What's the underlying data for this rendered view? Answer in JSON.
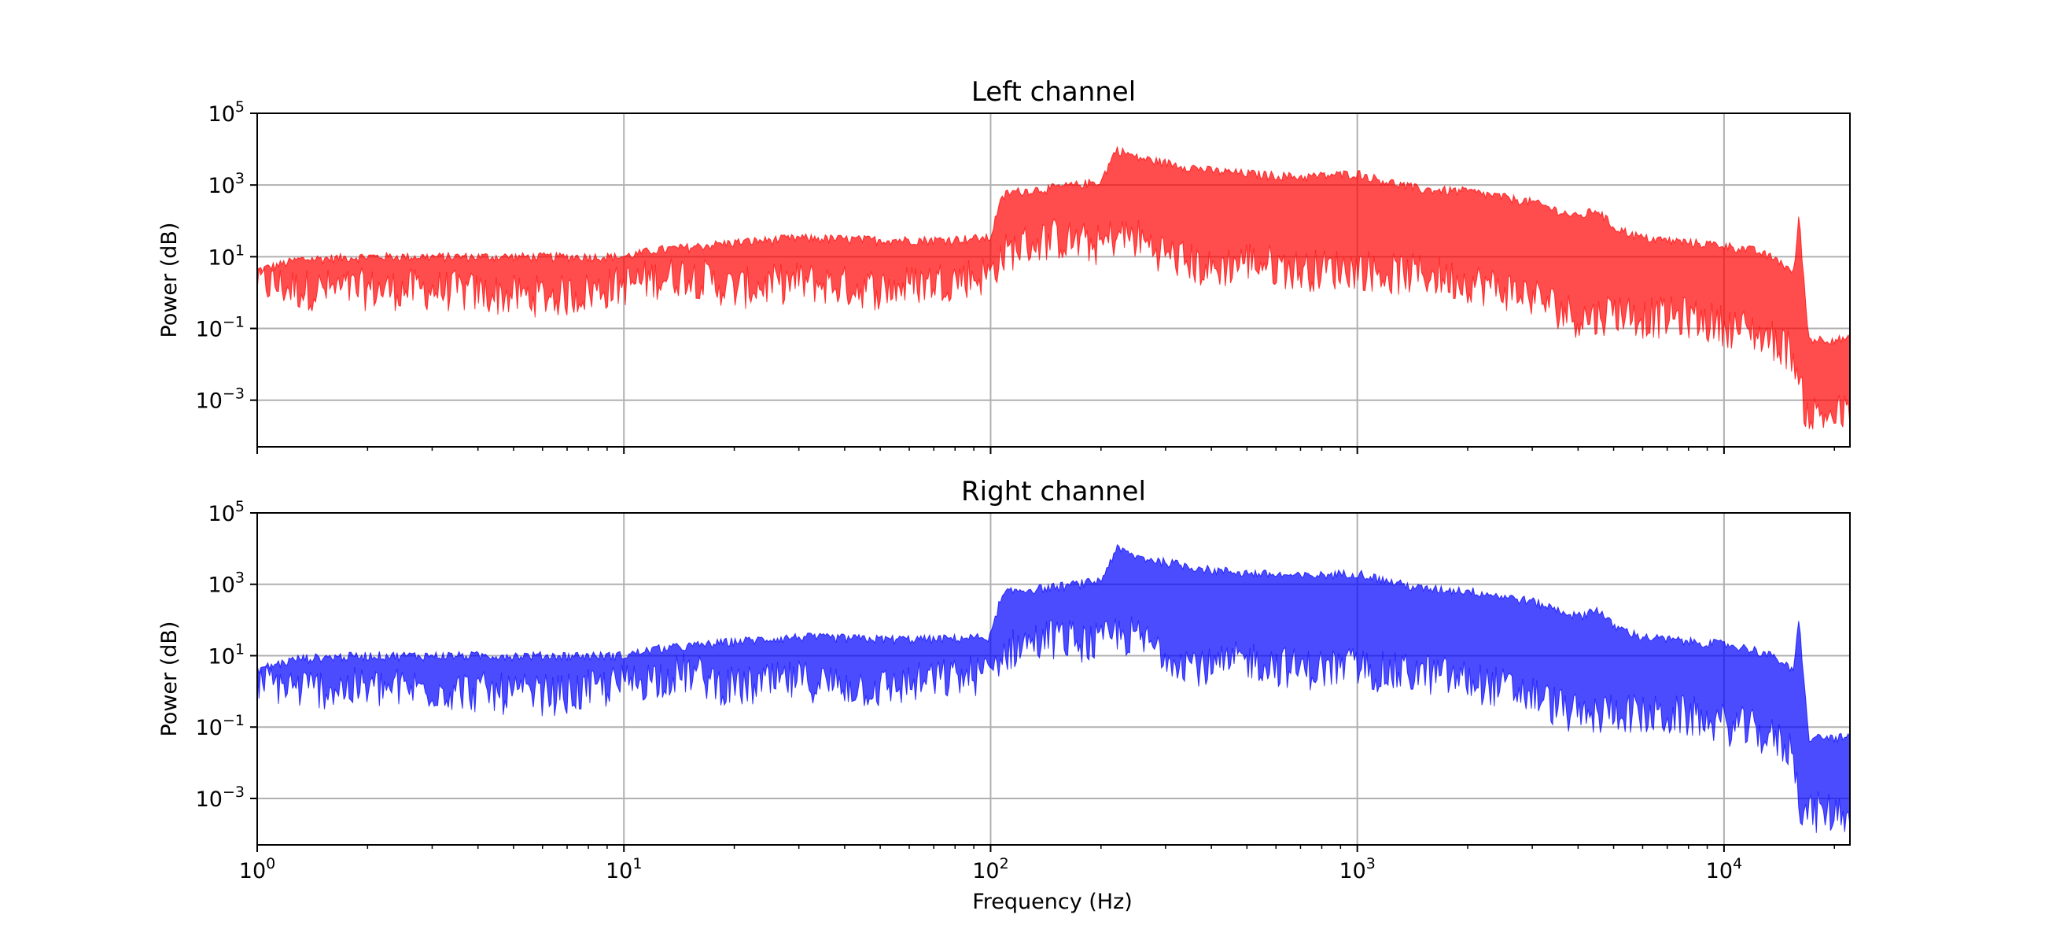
{
  "figure": {
    "xlabel": "Frequency (Hz)"
  },
  "chart_data": [
    {
      "type": "area",
      "title": "Left channel",
      "xlabel": "",
      "ylabel": "Power (dB)",
      "xscale": "log",
      "yscale": "log",
      "xlim": [
        1,
        22050
      ],
      "ylim": [
        5e-05,
        100000
      ],
      "x_ticks": [
        1,
        10,
        100,
        1000,
        10000
      ],
      "x_tick_labels": [],
      "y_ticks": [
        0.001,
        0.1,
        10,
        1000,
        100000
      ],
      "y_tick_labels": [
        {
          "base": "10",
          "exp": "−3"
        },
        {
          "base": "10",
          "exp": "−1"
        },
        {
          "base": "10",
          "exp": "1"
        },
        {
          "base": "10",
          "exp": "3"
        },
        {
          "base": "10",
          "exp": "5"
        }
      ],
      "grid": true,
      "color": "#ff0000",
      "series": [
        {
          "x": [
            1,
            1.3,
            2,
            3,
            5,
            7,
            10,
            12,
            15,
            20,
            30,
            50,
            70,
            100,
            105,
            110,
            120,
            150,
            200,
            220,
            250,
            300,
            400,
            500,
            700,
            1000,
            1200,
            1500,
            2000,
            3000,
            4000,
            4500,
            5000,
            6000,
            8000,
            10000,
            12000,
            14000,
            15500,
            16000,
            17000,
            20000,
            22050
          ],
          "upper": [
            5,
            10,
            12,
            12,
            12,
            12,
            12,
            18,
            22,
            30,
            40,
            35,
            35,
            40,
            300,
            700,
            800,
            1000,
            1500,
            12000,
            7000,
            5000,
            3000,
            2500,
            2000,
            2500,
            1500,
            900,
            800,
            400,
            150,
            250,
            80,
            40,
            30,
            25,
            18,
            10,
            4,
            180,
            0.06,
            0.06,
            0.06
          ],
          "lower": [
            0.5,
            0.3,
            0.3,
            0.3,
            0.2,
            0.2,
            0.4,
            0.6,
            0.8,
            0.3,
            0.5,
            0.3,
            0.5,
            0.8,
            2,
            3,
            5,
            8,
            5,
            10,
            8,
            3,
            1,
            2,
            1,
            1.2,
            0.8,
            0.8,
            0.5,
            0.2,
            0.05,
            0.05,
            0.08,
            0.05,
            0.05,
            0.03,
            0.02,
            0.01,
            0.005,
            0.0005,
            0.0001,
            0.0001,
            0.0001
          ]
        }
      ]
    },
    {
      "type": "area",
      "title": "Right channel",
      "xlabel": "Frequency (Hz)",
      "ylabel": "Power (dB)",
      "xscale": "log",
      "yscale": "log",
      "xlim": [
        1,
        22050
      ],
      "ylim": [
        5e-05,
        100000
      ],
      "x_ticks": [
        1,
        10,
        100,
        1000,
        10000
      ],
      "x_tick_labels": [
        {
          "base": "10",
          "exp": "0"
        },
        {
          "base": "10",
          "exp": "1"
        },
        {
          "base": "10",
          "exp": "2"
        },
        {
          "base": "10",
          "exp": "3"
        },
        {
          "base": "10",
          "exp": "4"
        }
      ],
      "y_ticks": [
        0.001,
        0.1,
        10,
        1000,
        100000
      ],
      "y_tick_labels": [
        {
          "base": "10",
          "exp": "−3"
        },
        {
          "base": "10",
          "exp": "−1"
        },
        {
          "base": "10",
          "exp": "1"
        },
        {
          "base": "10",
          "exp": "3"
        },
        {
          "base": "10",
          "exp": "5"
        }
      ],
      "grid": true,
      "color": "#0000ff",
      "series": [
        {
          "x": [
            1,
            1.3,
            2,
            3,
            5,
            7,
            10,
            12,
            15,
            20,
            30,
            50,
            70,
            100,
            105,
            110,
            120,
            150,
            200,
            220,
            250,
            300,
            400,
            500,
            700,
            1000,
            1200,
            1500,
            2000,
            3000,
            4000,
            4500,
            5000,
            6000,
            8000,
            10000,
            12000,
            14000,
            15500,
            16000,
            17000,
            20000,
            22050
          ],
          "upper": [
            5,
            10,
            12,
            12,
            12,
            12,
            12,
            18,
            22,
            30,
            40,
            35,
            35,
            40,
            300,
            700,
            800,
            1000,
            1500,
            12000,
            7000,
            5000,
            3000,
            2500,
            2000,
            2500,
            1500,
            900,
            800,
            400,
            150,
            250,
            80,
            40,
            30,
            25,
            18,
            10,
            4,
            150,
            0.06,
            0.06,
            0.06
          ],
          "lower": [
            0.5,
            0.3,
            0.3,
            0.3,
            0.2,
            0.2,
            0.4,
            0.6,
            0.8,
            0.3,
            0.5,
            0.3,
            0.5,
            0.8,
            2,
            3,
            5,
            8,
            5,
            10,
            8,
            3,
            1,
            2,
            1,
            1.2,
            0.8,
            0.8,
            0.5,
            0.2,
            0.05,
            0.05,
            0.08,
            0.05,
            0.05,
            0.03,
            0.02,
            0.01,
            0.005,
            0.0002,
            0.0001,
            0.0001,
            0.0001
          ]
        }
      ]
    }
  ]
}
